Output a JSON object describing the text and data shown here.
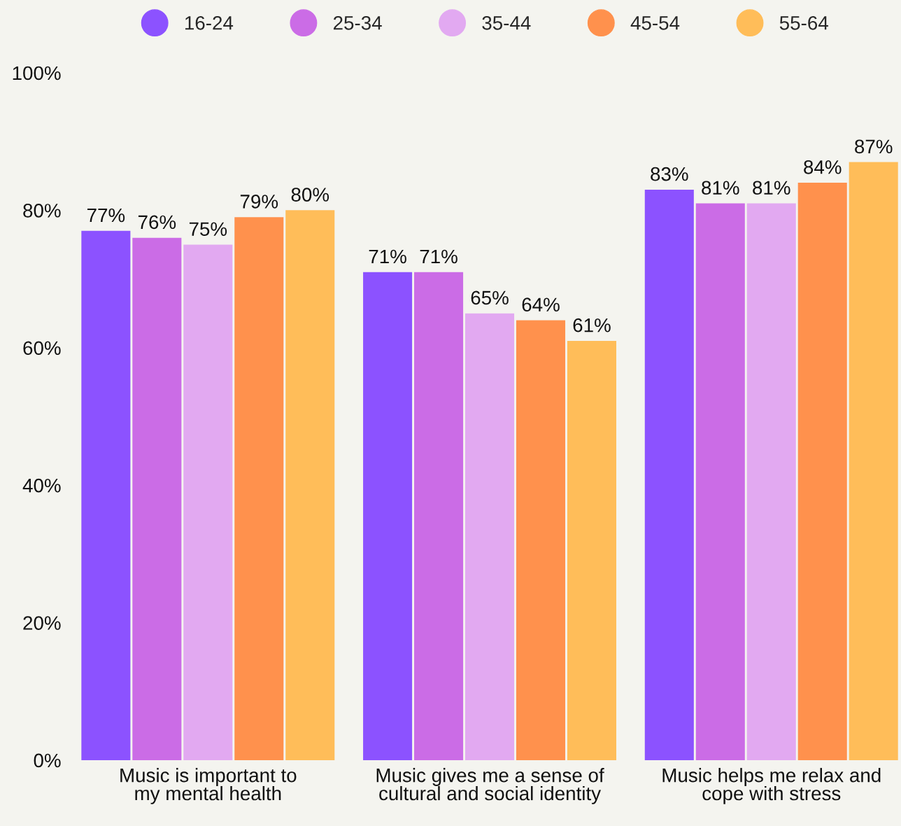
{
  "chart_data": {
    "type": "bar",
    "categories": [
      "Music is important to\nmy mental health",
      "Music gives me a sense of\ncultural and social identity",
      "Music helps me relax and\ncope with stress"
    ],
    "series": [
      {
        "name": "16-24",
        "color": "#8c52ff",
        "values": [
          77,
          71,
          83
        ],
        "value_labels": [
          "77%",
          "71%",
          "83%"
        ]
      },
      {
        "name": "25-34",
        "color": "#cb6ce6",
        "values": [
          76,
          71,
          81
        ],
        "value_labels": [
          "76%",
          "71%",
          "81%"
        ]
      },
      {
        "name": "35-44",
        "color": "#e2a9f1",
        "values": [
          75,
          65,
          81
        ],
        "value_labels": [
          "75%",
          "65%",
          "81%"
        ]
      },
      {
        "name": "45-54",
        "color": "#ff914d",
        "values": [
          79,
          64,
          84
        ],
        "value_labels": [
          "79%",
          "64%",
          "84%"
        ]
      },
      {
        "name": "55-64",
        "color": "#ffbd59",
        "values": [
          80,
          61,
          87
        ],
        "value_labels": [
          "80%",
          "61%",
          "87%"
        ]
      }
    ],
    "ylim": [
      0,
      100
    ],
    "yticks": [
      {
        "value": 0,
        "label": "0%"
      },
      {
        "value": 20,
        "label": "20%"
      },
      {
        "value": 40,
        "label": "40%"
      },
      {
        "value": 60,
        "label": "60%"
      },
      {
        "value": 80,
        "label": "80%"
      },
      {
        "value": 100,
        "label": "100%"
      }
    ],
    "legend": "top",
    "grid": false
  }
}
